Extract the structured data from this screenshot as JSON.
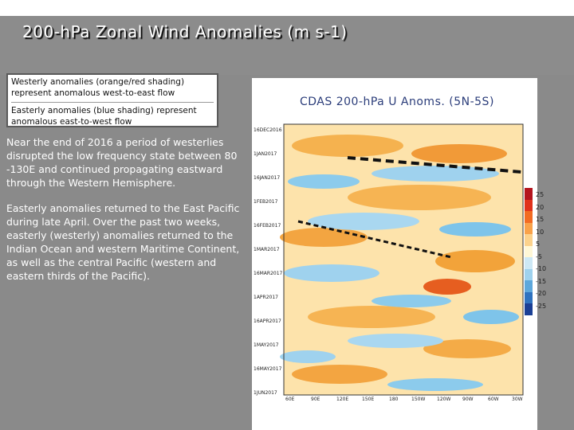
{
  "slide": {
    "title": "200-hPa Zonal Wind Anomalies (m s-1)",
    "legend": {
      "westerly": "Westerly anomalies (orange/red shading) represent anomalous west-to-east flow",
      "easterly": "Easterly anomalies (blue shading) represent anomalous east-to-west flow"
    },
    "paragraphs": [
      "Near the end of 2016 a period of westerlies disrupted the low frequency state between 80 -130E and continued propagating eastward through the Western Hemisphere.",
      "Easterly anomalies returned to the East Pacific during late April. Over the past two weeks, easterly (westerly) anomalies returned to the Indian Ocean and western Maritime Continent, as well as the central Pacific (western and eastern thirds of the Pacific)."
    ]
  },
  "figure": {
    "title": "CDAS 200-hPa U Anoms. (5N-5S)",
    "dates": [
      "16DEC2016",
      "1JAN2017",
      "16JAN2017",
      "1FEB2017",
      "16FEB2017",
      "1MAR2017",
      "16MAR2017",
      "1APR2017",
      "16APR2017",
      "1MAY2017",
      "16MAY2017",
      "1JUN2017"
    ],
    "longitudes": [
      "60E",
      "90E",
      "120E",
      "150E",
      "180",
      "150W",
      "120W",
      "90W",
      "60W",
      "30W"
    ],
    "colorbar_labels": [
      "25",
      "20",
      "15",
      "10",
      "5",
      "-5",
      "-10",
      "-15",
      "-20",
      "-25"
    ],
    "colorbar_colors": [
      "#b4141e",
      "#e0321c",
      "#f26b23",
      "#f9a24a",
      "#fcd28c",
      "#fff7d6",
      "#cde8f5",
      "#9fd2ee",
      "#5ea8dc",
      "#2f73c0",
      "#1a3f95"
    ],
    "westerly_color": "#f2a33a",
    "easterly_color": "#7ec4ea"
  }
}
